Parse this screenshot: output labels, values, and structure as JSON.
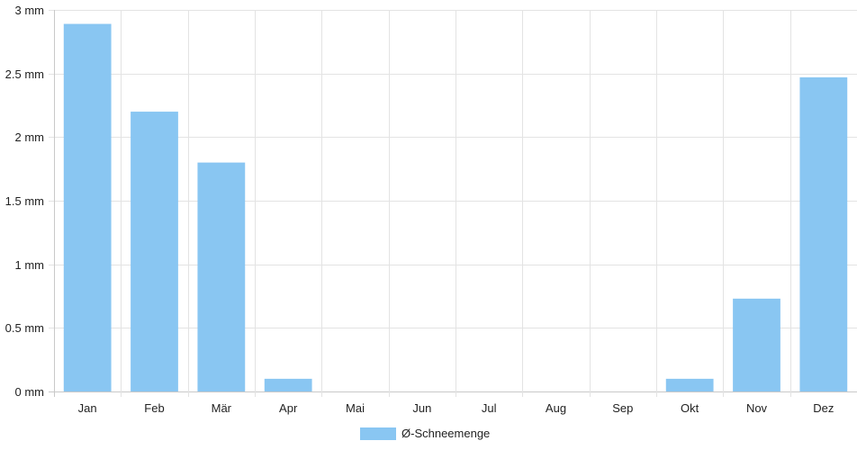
{
  "chart_data": {
    "type": "bar",
    "categories": [
      "Jan",
      "Feb",
      "Mär",
      "Apr",
      "Mai",
      "Jun",
      "Jul",
      "Aug",
      "Sep",
      "Okt",
      "Nov",
      "Dez"
    ],
    "series": [
      {
        "name": "Ø-Schneemenge",
        "values": [
          2.89,
          2.2,
          1.8,
          0.1,
          0,
          0,
          0,
          0,
          0,
          0.1,
          0.73,
          2.47
        ]
      }
    ],
    "ylim": [
      0,
      3
    ],
    "yticks": [
      {
        "value": 0,
        "label": "0 mm"
      },
      {
        "value": 0.5,
        "label": "0.5 mm"
      },
      {
        "value": 1,
        "label": "1 mm"
      },
      {
        "value": 1.5,
        "label": "1.5 mm"
      },
      {
        "value": 2,
        "label": "2 mm"
      },
      {
        "value": 2.5,
        "label": "2.5 mm"
      },
      {
        "value": 3,
        "label": "3 mm"
      }
    ],
    "grid": true,
    "legend_position": "bottom",
    "colors": {
      "bar": "#89c6f2",
      "grid": "#e3e3e3",
      "axis": "#c9c9c9"
    }
  }
}
